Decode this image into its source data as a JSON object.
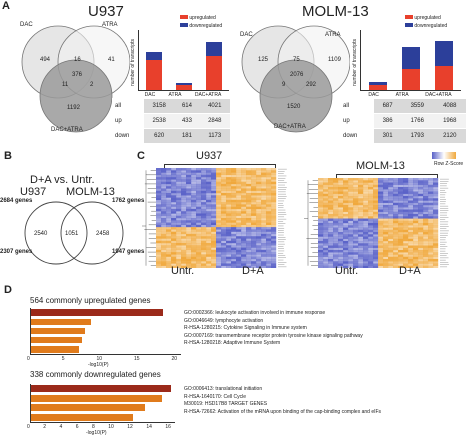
{
  "panels": {
    "A": "A",
    "B": "B",
    "C": "C",
    "D": "D"
  },
  "colors": {
    "upregulated": "#e8402c",
    "downregulated": "#2c3f9a",
    "bar_orange": "#e07b1c",
    "bar_darkred": "#9b2a1a",
    "heat_blue": "#5a62c8",
    "heat_orange": "#f0a83c"
  },
  "u937": {
    "title": "U937",
    "venn": {
      "dac": "DAC",
      "atra": "ATRA",
      "both": "DAC+ATRA",
      "n_dac_only": "494",
      "n_atra_only": "41",
      "n_dac_atra": "16",
      "n_center": "376",
      "n_dac_both": "11",
      "n_atra_both": "2",
      "n_both_only": "1192"
    },
    "table": {
      "cols": [
        "3158",
        "614",
        "4021"
      ],
      "rows": [
        {
          "label": "all",
          "vals": [
            "3158",
            "614",
            "4021"
          ]
        },
        {
          "label": "up",
          "vals": [
            "2538",
            "433",
            "2848"
          ]
        },
        {
          "label": "down",
          "vals": [
            "620",
            "181",
            "1173"
          ]
        }
      ]
    }
  },
  "molm": {
    "title": "MOLM-13",
    "venn": {
      "dac": "DAC",
      "atra": "ATRA",
      "both": "DAC+ATRA",
      "n_dac_only": "125",
      "n_atra_only": "1109",
      "n_dac_atra": "75",
      "n_center": "2076",
      "n_dac_both": "9",
      "n_atra_both": "292",
      "n_both_only": "1520"
    },
    "table": {
      "rows": [
        {
          "label": "all",
          "vals": [
            "687",
            "3559",
            "4088"
          ]
        },
        {
          "label": "up",
          "vals": [
            "386",
            "1766",
            "1968"
          ]
        },
        {
          "label": "down",
          "vals": [
            "301",
            "1793",
            "2120"
          ]
        }
      ]
    }
  },
  "bar_legend": {
    "up": "upregulated",
    "down": "downregulated"
  },
  "bar_ylabel": "number of transcripts",
  "bar_categories": [
    "DAC",
    "ATRA",
    "DAC+ATRA"
  ],
  "chart_data": [
    {
      "type": "bar",
      "title": "U937",
      "categories": [
        "DAC",
        "ATRA",
        "DAC+ATRA"
      ],
      "series": [
        {
          "name": "upregulated",
          "values": [
            2538,
            433,
            2848
          ]
        },
        {
          "name": "downregulated",
          "values": [
            620,
            181,
            1173
          ]
        }
      ],
      "ylabel": "number of transcripts",
      "ylim": [
        0,
        5000
      ]
    },
    {
      "type": "bar",
      "title": "MOLM-13",
      "categories": [
        "DAC",
        "ATRA",
        "DAC+ATRA"
      ],
      "series": [
        {
          "name": "upregulated",
          "values": [
            386,
            1766,
            1968
          ]
        },
        {
          "name": "downregulated",
          "values": [
            301,
            1793,
            2120
          ]
        }
      ],
      "ylabel": "number of transcripts",
      "ylim": [
        0,
        5000
      ]
    },
    {
      "type": "bar",
      "title": "564 commonly upregulated genes",
      "categories": [
        "GO:0002366: leukocyte activation involved in immune response",
        "GO:0046649: lymphocyte activation",
        "R-HSA-1280215: Cytokine Signaling in Immune system",
        "GO:0007169: transmembrane receptor protein tyrosine kinase signaling pathway",
        "R-HSA-1280218: Adaptive Immune System"
      ],
      "values": [
        22,
        10,
        9,
        8.5,
        8
      ],
      "xlabel": "-log10(P)",
      "xlim": [
        0,
        25
      ]
    },
    {
      "type": "bar",
      "title": "338 commonly downregulated genes",
      "categories": [
        "GO:0006413: translational initiation",
        "R-HSA-1640170: Cell Cycle",
        "M30019: HSD17B8 TARGET GENES",
        "R-HSA-72662: Activation of the mRNA upon binding of the cap-binding complex and eIFs"
      ],
      "values": [
        16.5,
        15.5,
        13.5,
        12
      ],
      "xlabel": "-log10(P)",
      "xlim": [
        0,
        17
      ]
    }
  ],
  "panelB": {
    "title": "D+A vs. Untr.",
    "left": "U937",
    "right": "MOLM-13",
    "left_up": "2684 genes",
    "left_down": "2307 genes",
    "right_up": "1762 genes",
    "right_down": "1947 genes",
    "n_left": "2540",
    "n_center": "1051",
    "n_right": "2458"
  },
  "panelC": {
    "left_title": "U937",
    "right_title": "MOLM-13",
    "x1": "Untr.",
    "x2": "D+A",
    "x3": "Untr.",
    "x4": "D+A",
    "legend": "Row Z-Score"
  },
  "panelD": {
    "up_title": "564 commonly upregulated genes",
    "down_title": "338 commonly downregulated genes",
    "up_terms": [
      "GO:0002366: leukocyte activation involved in immune response",
      "GO:0046649: lymphocyte activation",
      "R-HSA-1280215: Cytokine Signaling in Immune system",
      "GO:0007169: transmembrane receptor protein tyrosine kinase signaling pathway",
      "R-HSA-1280218: Adaptive Immune System"
    ],
    "down_terms": [
      "GO:0006413: translational initiation",
      "R-HSA-1640170: Cell Cycle",
      "M30019: HSD17B8 TARGET GENES",
      "R-HSA-72662: Activation of the mRNA upon binding of the cap-binding complex and eIFs"
    ],
    "up_ticks": [
      "0",
      "5",
      "10",
      "15",
      "20"
    ],
    "down_ticks": [
      "0",
      "2",
      "4",
      "6",
      "8",
      "10",
      "12",
      "14",
      "16"
    ],
    "xlabel": "-log10(P)"
  }
}
